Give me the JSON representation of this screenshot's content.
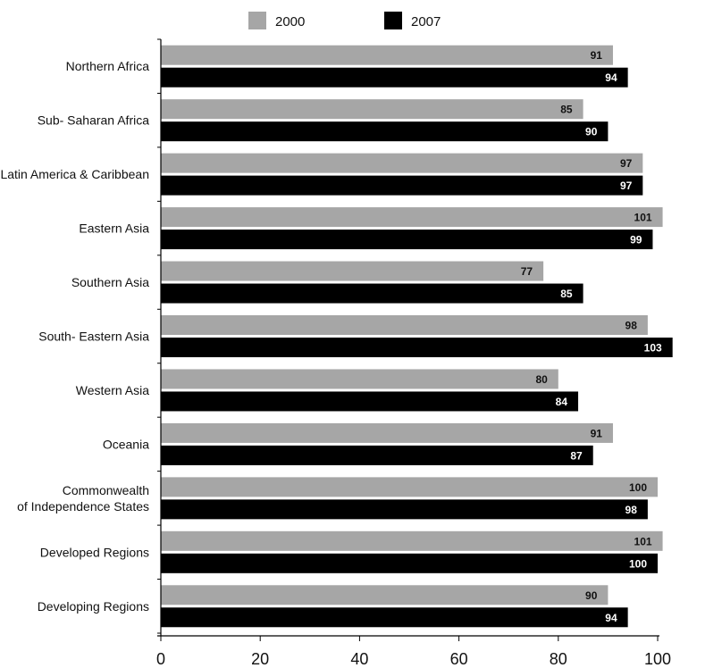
{
  "chart_data": {
    "type": "bar",
    "orientation": "horizontal",
    "categories": [
      "Northern Africa",
      "Sub- Saharan Africa",
      "Latin America & Caribbean",
      "Eastern Asia",
      "Southern Asia",
      "South- Eastern Asia",
      "Western Asia",
      "Oceania",
      "Commonwealth\nof Independence States",
      "Developed Regions",
      "Developing Regions"
    ],
    "series": [
      {
        "name": "2000",
        "color": "#a6a6a6",
        "values": [
          91,
          85,
          97,
          101,
          77,
          98,
          80,
          91,
          100,
          101,
          90
        ]
      },
      {
        "name": "2007",
        "color": "#000000",
        "values": [
          94,
          90,
          97,
          99,
          85,
          103,
          84,
          87,
          98,
          100,
          94
        ]
      }
    ],
    "xlim": [
      0,
      100
    ],
    "xticks": [
      0,
      20,
      40,
      60,
      80,
      100
    ],
    "legend_position": "top",
    "grid": false
  }
}
